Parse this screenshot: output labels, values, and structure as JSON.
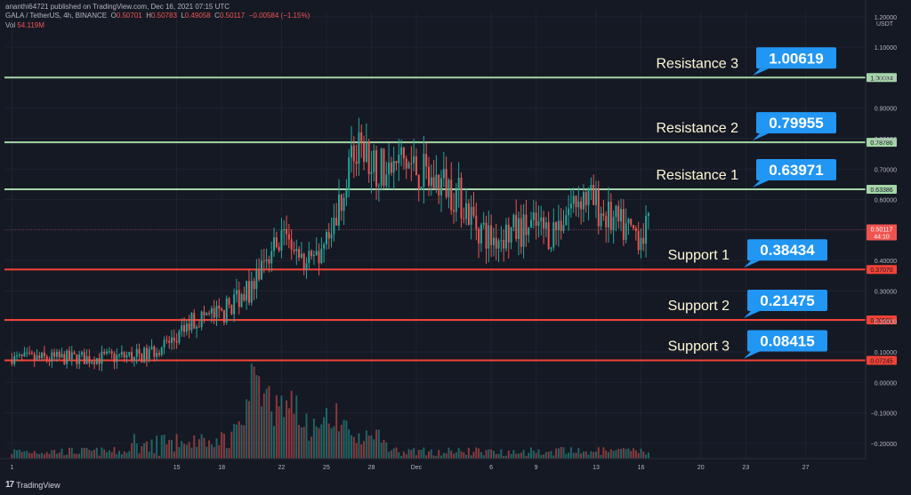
{
  "header": {
    "published_line": "ananthi64721 published on TradingView.com, Dec 16, 2021 07:15 UTC",
    "symbol": "GALA / TetherUS, 4h, BINANCE",
    "o_label": "O",
    "o_value": "0.50701",
    "h_label": "H",
    "h_value": "0.50783",
    "l_label": "L",
    "l_value": "0.49058",
    "c_label": "C",
    "c_value": "0.50117",
    "change": "−0.00584 (−1.15%)",
    "vol_label": "Vol",
    "vol_value": "54.119M"
  },
  "brand": {
    "logo": "17",
    "name": "TradingView"
  },
  "colors": {
    "background": "#151924",
    "up": "#26a69a",
    "down": "#ef5350",
    "resistance_line": "#a5d6a7",
    "support_line": "#f44336",
    "callout": "#2196f3",
    "label_text": "#fff8d6"
  },
  "chart_data": {
    "type": "candlestick",
    "price_axis": {
      "unit": "USDT",
      "ticks": [
        "1.20000",
        "1.10000",
        "1.00000",
        "0.90000",
        "0.80000",
        "0.70000",
        "0.60000",
        "0.50000",
        "0.40000",
        "0.30000",
        "0.20000",
        "0.10000",
        "0.00000",
        "−0.10000",
        "−0.20000"
      ],
      "tick_values": [
        1.2,
        1.1,
        1.0,
        0.9,
        0.8,
        0.7,
        0.6,
        0.5,
        0.4,
        0.3,
        0.2,
        0.1,
        0.0,
        -0.1,
        -0.2
      ],
      "range": [
        -0.25,
        1.22
      ]
    },
    "time_axis": {
      "labels": [
        "1",
        "15",
        "18",
        "22",
        "25",
        "28",
        "Dec",
        "6",
        "9",
        "13",
        "16",
        "20",
        "23",
        "27"
      ],
      "positions_day_index": [
        0,
        11,
        14,
        18,
        21,
        24,
        27,
        32,
        35,
        39,
        42,
        46,
        49,
        53
      ],
      "range_day_index": [
        -0.5,
        57
      ]
    },
    "levels": [
      {
        "kind": "resistance",
        "name": "Resistance 3",
        "callout": "1.00619",
        "price": 1.00034,
        "price_label": "1.00034"
      },
      {
        "kind": "resistance",
        "name": "Resistance 2",
        "callout": "0.79955",
        "price": 0.78786,
        "price_label": "0.78786"
      },
      {
        "kind": "resistance",
        "name": "Resistance 1",
        "callout": "0.63971",
        "price": 0.63386,
        "price_label": "0.63386"
      },
      {
        "kind": "support",
        "name": "Support 1",
        "callout": "0.38434",
        "price": 0.3707,
        "price_label": "0.37070"
      },
      {
        "kind": "support",
        "name": "Support 2",
        "callout": "0.21475",
        "price": 0.20501,
        "price_label": "0.20501"
      },
      {
        "kind": "support",
        "name": "Support 3",
        "callout": "0.08415",
        "price": 0.07245,
        "price_label": "0.07245"
      }
    ],
    "last_price": {
      "value": 0.50117,
      "label": "0.50117",
      "countdown": "44:10"
    },
    "price_path": [
      [
        0,
        0.075
      ],
      [
        6,
        0.08
      ],
      [
        9,
        0.09
      ],
      [
        10,
        0.12
      ],
      [
        11,
        0.14
      ],
      [
        12,
        0.2
      ],
      [
        13,
        0.22
      ],
      [
        14,
        0.22
      ],
      [
        15,
        0.28
      ],
      [
        16,
        0.31
      ],
      [
        17,
        0.4
      ],
      [
        18,
        0.47
      ],
      [
        19,
        0.4
      ],
      [
        20,
        0.38
      ],
      [
        21,
        0.45
      ],
      [
        22,
        0.62
      ],
      [
        23,
        0.75
      ],
      [
        24,
        0.74
      ],
      [
        25,
        0.68
      ],
      [
        26,
        0.73
      ],
      [
        27,
        0.7
      ],
      [
        28,
        0.66
      ],
      [
        29,
        0.65
      ],
      [
        30,
        0.6
      ],
      [
        31,
        0.52
      ],
      [
        32,
        0.47
      ],
      [
        33,
        0.49
      ],
      [
        34,
        0.5
      ],
      [
        35,
        0.51
      ],
      [
        36,
        0.49
      ],
      [
        37,
        0.56
      ],
      [
        38,
        0.62
      ],
      [
        39,
        0.58
      ],
      [
        40,
        0.53
      ],
      [
        41,
        0.5
      ],
      [
        42,
        0.49
      ],
      [
        42.6,
        0.501
      ]
    ],
    "volume": {
      "spikes": [
        [
          16,
          70
        ],
        [
          17,
          35
        ],
        [
          18,
          48
        ],
        [
          19,
          30
        ],
        [
          21,
          30
        ],
        [
          22,
          22
        ],
        [
          24,
          18
        ]
      ]
    }
  }
}
